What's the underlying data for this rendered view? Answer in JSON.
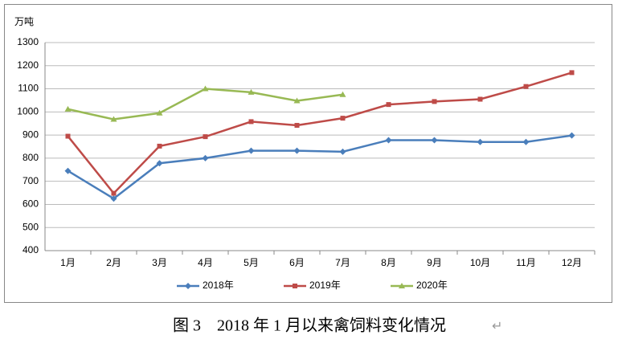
{
  "chart_data": {
    "type": "line",
    "y_label": "万吨",
    "caption": "图 3　2018 年 1 月以来禽饲料变化情况",
    "caption_mark": "↵",
    "categories": [
      "1月",
      "2月",
      "3月",
      "4月",
      "5月",
      "6月",
      "7月",
      "8月",
      "9月",
      "10月",
      "11月",
      "12月"
    ],
    "series": [
      {
        "name": "2018年",
        "color": "#4a7ebb",
        "marker": "diamond",
        "values": [
          745,
          625,
          778,
          800,
          832,
          832,
          828,
          878,
          878,
          870,
          870,
          898
        ]
      },
      {
        "name": "2019年",
        "color": "#be4b48",
        "marker": "square",
        "values": [
          895,
          648,
          852,
          893,
          958,
          942,
          973,
          1032,
          1045,
          1055,
          1110,
          1170
        ]
      },
      {
        "name": "2020年",
        "color": "#98b954",
        "marker": "triangle",
        "values": [
          1012,
          968,
          995,
          1100,
          1085,
          1048,
          1075,
          null,
          null,
          null,
          null,
          null
        ]
      }
    ],
    "ylim": [
      400,
      1300
    ],
    "yticks": [
      400,
      500,
      600,
      700,
      800,
      900,
      1000,
      1100,
      1200,
      1300
    ],
    "grid": true,
    "legend": "bottom"
  }
}
